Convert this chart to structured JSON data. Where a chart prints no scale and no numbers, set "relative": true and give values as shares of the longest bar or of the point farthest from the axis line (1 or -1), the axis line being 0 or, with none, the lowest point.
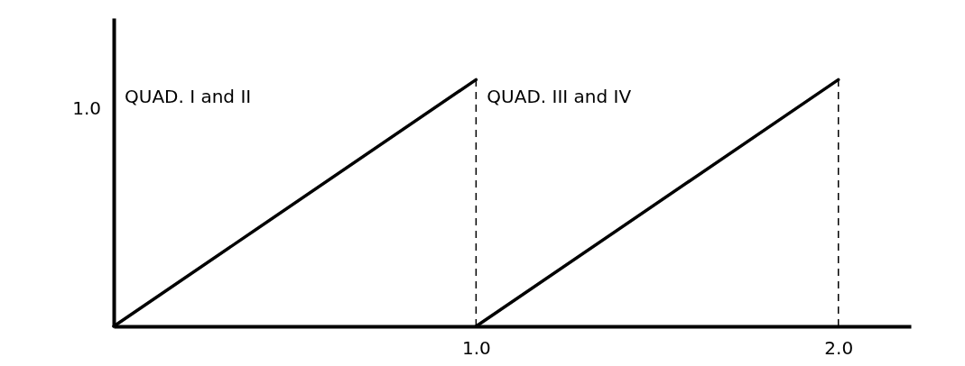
{
  "chart_data": {
    "type": "line",
    "relative": true,
    "series": [
      {
        "color": "#000000",
        "x": [
          0,
          1
        ],
        "values": [
          0,
          1
        ]
      },
      {
        "color": "#000000",
        "x": [
          1,
          2
        ],
        "values": [
          0,
          1
        ]
      }
    ],
    "xlim": [
      0,
      2.2
    ],
    "xticks": [
      {
        "value": 1,
        "label": "1.0"
      },
      {
        "value": 2,
        "label": "2.0"
      }
    ],
    "ref_lines": [
      {
        "axis": "x",
        "value": 1,
        "color": "#000000",
        "line_style": "dashed"
      },
      {
        "axis": "x",
        "value": 2,
        "color": "#000000",
        "line_style": "dashed"
      }
    ],
    "annotations": [
      "1.0",
      "QUAD. I and II",
      "QUAD. III and IV"
    ],
    "grid": false,
    "marker": "none",
    "line_style": "solid"
  }
}
